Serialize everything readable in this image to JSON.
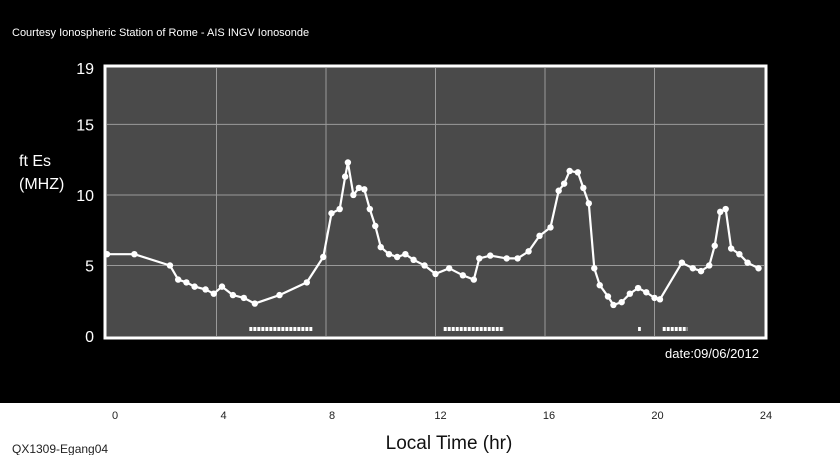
{
  "chart_data": {
    "type": "line",
    "courtesy": "Courtesy Ionospheric Station of Rome - AIS INGV Ionosonde",
    "ylabel_line1": "ft Es",
    "ylabel_line2": "(MHZ)",
    "xlabel": "Local Time (hr)",
    "date_label": "date:09/06/2012",
    "code_label": "QX1309-Egang04",
    "xlim": [
      0,
      24
    ],
    "ylim": [
      0,
      19
    ],
    "x_ticks": [
      0,
      4,
      8,
      12,
      16,
      20,
      24
    ],
    "y_ticks": [
      0,
      5,
      10,
      15,
      19
    ],
    "grid": true,
    "plot_background": "#4a4a4a",
    "panel_background": "#000000",
    "series_color": "#ffffff",
    "series": [
      {
        "points": [
          [
            0,
            5.8
          ],
          [
            1,
            5.8
          ],
          [
            2.3,
            5.0
          ],
          [
            2.6,
            4.0
          ],
          [
            2.9,
            3.8
          ],
          [
            3.2,
            3.5
          ],
          [
            3.6,
            3.3
          ],
          [
            3.9,
            3.0
          ],
          [
            4.2,
            3.5
          ],
          [
            4.6,
            2.9
          ],
          [
            5.0,
            2.7
          ],
          [
            5.4,
            2.3
          ],
          [
            6.3,
            2.9
          ],
          [
            7.3,
            3.8
          ],
          [
            7.9,
            5.6
          ],
          [
            8.2,
            8.7
          ],
          [
            8.5,
            9.0
          ],
          [
            8.7,
            11.3
          ],
          [
            8.8,
            12.3
          ],
          [
            9.0,
            10.0
          ],
          [
            9.2,
            10.5
          ],
          [
            9.4,
            10.4
          ],
          [
            9.6,
            9.0
          ],
          [
            9.8,
            7.8
          ],
          [
            10.0,
            6.3
          ],
          [
            10.3,
            5.8
          ],
          [
            10.6,
            5.6
          ],
          [
            10.9,
            5.8
          ],
          [
            11.2,
            5.4
          ],
          [
            11.6,
            5.0
          ],
          [
            12.0,
            4.4
          ],
          [
            12.5,
            4.8
          ],
          [
            13.0,
            4.3
          ],
          [
            13.4,
            4.0
          ],
          [
            13.6,
            5.5
          ],
          [
            14.0,
            5.7
          ],
          [
            14.6,
            5.5
          ],
          [
            15.0,
            5.5
          ],
          [
            15.4,
            6.0
          ],
          [
            15.8,
            7.1
          ],
          [
            16.2,
            7.7
          ],
          [
            16.5,
            10.3
          ],
          [
            16.7,
            10.8
          ],
          [
            16.9,
            11.7
          ],
          [
            17.2,
            11.6
          ],
          [
            17.4,
            10.5
          ],
          [
            17.6,
            9.4
          ],
          [
            17.8,
            4.8
          ],
          [
            18.0,
            3.6
          ],
          [
            18.3,
            2.8
          ],
          [
            18.5,
            2.2
          ],
          [
            18.8,
            2.4
          ],
          [
            19.1,
            3.0
          ],
          [
            19.4,
            3.4
          ],
          [
            19.7,
            3.1
          ],
          [
            20.0,
            2.7
          ],
          [
            20.2,
            2.6
          ],
          [
            21.0,
            5.2
          ],
          [
            21.4,
            4.8
          ],
          [
            21.7,
            4.6
          ],
          [
            22.0,
            5.0
          ],
          [
            22.2,
            6.4
          ],
          [
            22.4,
            8.8
          ],
          [
            22.6,
            9.0
          ],
          [
            22.8,
            6.2
          ],
          [
            23.1,
            5.8
          ],
          [
            23.4,
            5.2
          ],
          [
            23.8,
            4.8
          ]
        ]
      }
    ],
    "baseline_marks": [
      [
        5.2,
        7.5
      ],
      [
        12.3,
        14.5
      ],
      [
        19.4,
        19.5
      ],
      [
        20.3,
        21.2
      ]
    ]
  }
}
